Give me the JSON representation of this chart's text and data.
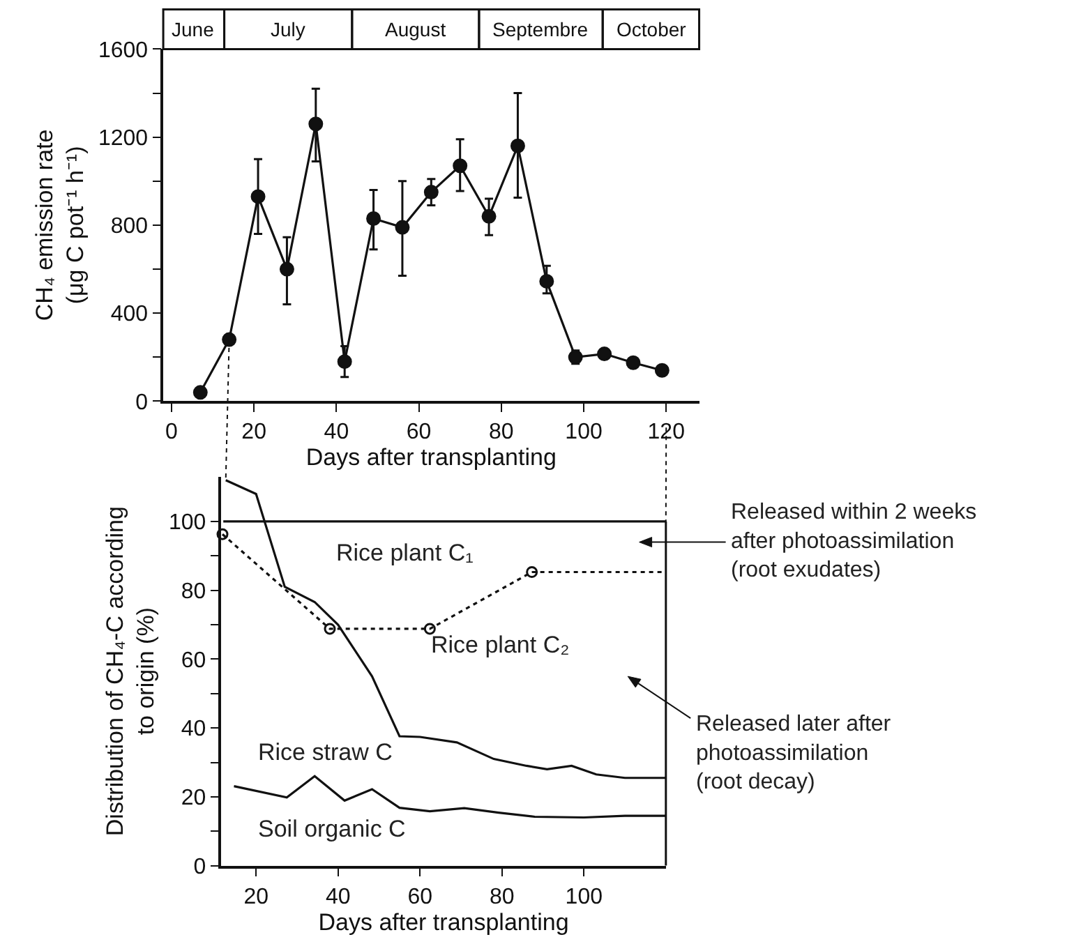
{
  "chart_data": [
    {
      "type": "line",
      "x": [
        7,
        14,
        21,
        28,
        35,
        42,
        49,
        56,
        63,
        70,
        77,
        84,
        91,
        98,
        105,
        112,
        119
      ],
      "values": [
        40,
        280,
        930,
        600,
        1260,
        180,
        830,
        790,
        950,
        1070,
        840,
        1160,
        545,
        200,
        215,
        175,
        140
      ],
      "errors": [
        null,
        null,
        [
          760,
          1100
        ],
        [
          440,
          745
        ],
        [
          1090,
          1420
        ],
        [
          110,
          250
        ],
        [
          690,
          960
        ],
        [
          570,
          1000
        ],
        [
          890,
          1010
        ],
        [
          955,
          1190
        ],
        [
          755,
          920
        ],
        [
          925,
          1400
        ],
        [
          490,
          615
        ],
        [
          170,
          230
        ],
        null,
        null,
        null
      ],
      "color": "#111111",
      "marker": "circle",
      "xlim": [
        -2,
        128
      ],
      "ylim": [
        0,
        1600
      ],
      "xticks": [
        0,
        20,
        40,
        60,
        80,
        100,
        120
      ],
      "yticks": [
        0,
        {
          "value": 200,
          "label": null
        },
        400,
        {
          "value": 600,
          "label": null
        },
        800,
        {
          "value": 1000,
          "label": null
        },
        1200,
        {
          "value": 1400,
          "label": null
        },
        1600
      ],
      "xlabel": "Days after transplanting",
      "ylabel": "CH₄ emission rate\n(μg C pot⁻¹ h⁻¹)",
      "annotations": [
        "June",
        "July",
        "August",
        "Septembre",
        "October"
      ]
    },
    {
      "type": "line",
      "series": [
        {
          "color": "#111111",
          "x": [
            12,
            120
          ],
          "values": [
            100,
            100
          ],
          "line_style": "solid"
        },
        {
          "color": "#111111",
          "x": [
            12.6,
            20,
            27,
            34.3,
            40,
            48.3,
            55,
            60,
            69,
            78,
            86,
            91,
            97,
            103,
            110,
            120
          ],
          "values": [
            112,
            108,
            81,
            76.6,
            70,
            55,
            37.6,
            37.4,
            35.8,
            31,
            29,
            28,
            29,
            26.5,
            25.5,
            25.5
          ],
          "line_style": "solid"
        },
        {
          "color": "#111111",
          "x": [
            14.6,
            27.5,
            34.3,
            41.6,
            48.3,
            55,
            62.4,
            70.8,
            79.2,
            88,
            100,
            110,
            120
          ],
          "values": [
            23.1,
            19.8,
            26,
            18.9,
            22.2,
            16.8,
            15.8,
            16.7,
            15.4,
            14.2,
            14,
            14.5,
            14.5
          ],
          "line_style": "solid"
        },
        {
          "color": "#111111",
          "x": [
            11.8,
            38,
            62.4,
            87.3
          ],
          "values": [
            96.3,
            68.8,
            68.8,
            85.3
          ],
          "line_style": "dotted",
          "marker": "circle"
        },
        {
          "color": "#111111",
          "x": [
            87.3,
            120
          ],
          "values": [
            85.3,
            85.3
          ],
          "line_style": "dotted"
        }
      ],
      "xlim": [
        11.5,
        120
      ],
      "ylim": [
        0,
        113
      ],
      "xticks": [
        20,
        40,
        60,
        80,
        100
      ],
      "yticks": [
        0,
        {
          "value": 10,
          "label": null
        },
        20,
        {
          "value": 30,
          "label": null
        },
        40,
        {
          "value": 50,
          "label": null
        },
        60,
        {
          "value": 70,
          "label": null
        },
        80,
        {
          "value": 90,
          "label": null
        },
        100
      ],
      "xlabel": "Days after transplanting",
      "ylabel": "Distribution of CH₄-C according\nto origin (%)",
      "annotations": [
        "Rice plant C₁",
        "Rice plant C₂",
        "Rice straw C",
        "Soil organic C",
        "Released within 2 weeks\nafter photoassimilation\n(root exudates)",
        "Released later after\nphotoassimilation\n(root decay)"
      ]
    }
  ]
}
